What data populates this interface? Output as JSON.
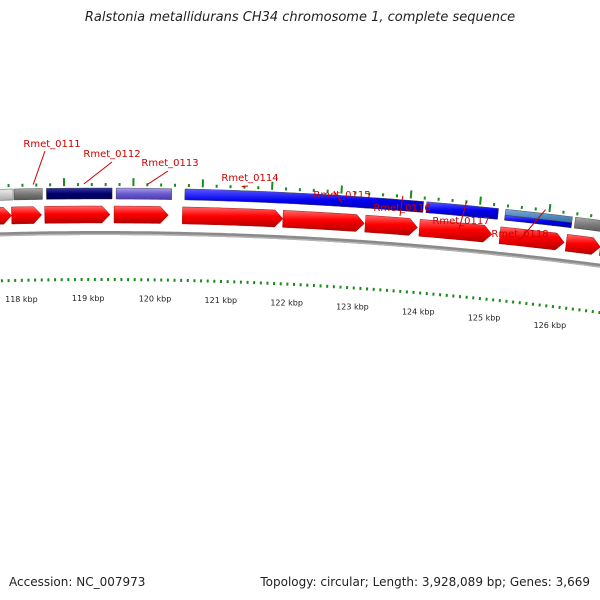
{
  "title": "Ralstonia metallidurans CH34 chromosome 1, complete sequence",
  "footer": {
    "accession": "Accession: NC_007973",
    "summary": "Topology: circular; Length: 3,928,089 bp; Genes: 3,669"
  },
  "colors": {
    "backbone": "#888888",
    "cds": "#ff0000",
    "tick": "#1a8a1a",
    "label": "#cc0000"
  },
  "gene_labels": [
    {
      "name": "Rmet_0111"
    },
    {
      "name": "Rmet_0112"
    },
    {
      "name": "Rmet_0113"
    },
    {
      "name": "Rmet_0114"
    },
    {
      "name": "Rmet_0115"
    },
    {
      "name": "Rmet_0116"
    },
    {
      "name": "Rmet_0117"
    },
    {
      "name": "Rmet_0118"
    }
  ],
  "kbp_labels": [
    "118 kbp",
    "119 kbp",
    "120 kbp",
    "121 kbp",
    "122 kbp",
    "123 kbp",
    "124 kbp",
    "125 kbp",
    "126 kbp"
  ]
}
